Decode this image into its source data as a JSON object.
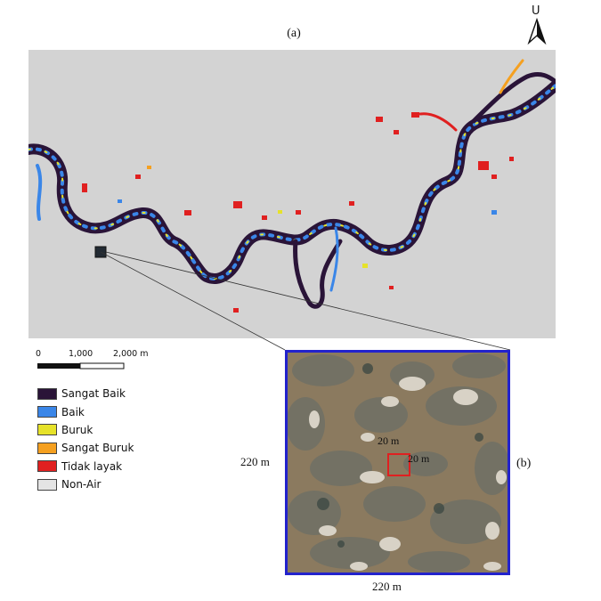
{
  "panel_a_label": "(a)",
  "panel_b_label": "(b)",
  "north_arrow": {
    "letter": "U",
    "icon": "north-arrow-icon"
  },
  "scale_bar": {
    "labels": [
      "0",
      "1,000",
      "2,000 m"
    ]
  },
  "legend": {
    "items": [
      {
        "label": "Sangat Baik",
        "color": "#2a1438"
      },
      {
        "label": "Baik",
        "color": "#3a86e8"
      },
      {
        "label": "Buruk",
        "color": "#e6e22a"
      },
      {
        "label": "Sangat Buruk",
        "color": "#f5a020"
      },
      {
        "label": "Tidak layak",
        "color": "#e02020"
      },
      {
        "label": "Non-Air",
        "color": "#e4e4e4"
      }
    ]
  },
  "inset": {
    "width_label": "220 m",
    "height_label": "220 m",
    "cell_width_label": "20 m",
    "cell_height_label": "20 m",
    "border_color": "#2222cc",
    "cell_color": "#e02020"
  },
  "map": {
    "background_color": "#d3d3d3"
  }
}
